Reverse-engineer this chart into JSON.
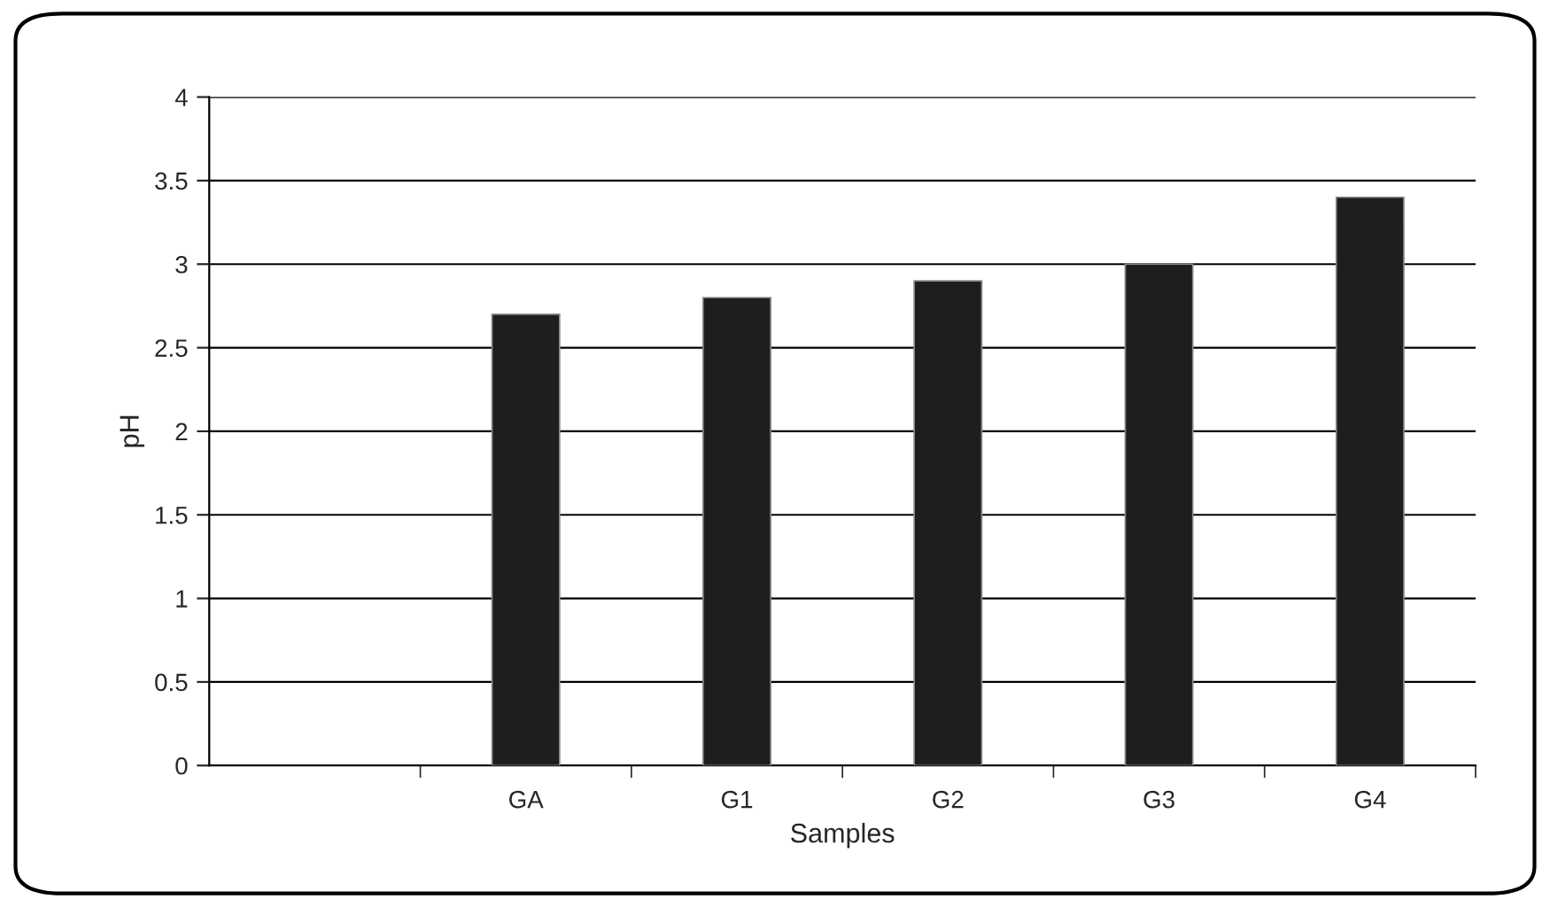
{
  "chart_data": {
    "type": "bar",
    "xlabel": "Samples",
    "ylabel": "pH",
    "categories": [
      null,
      "GA",
      "G1",
      "G2",
      "G3",
      "G4"
    ],
    "values": [
      null,
      2.7,
      2.8,
      2.9,
      3.0,
      3.4
    ],
    "color": "#1e1e1e",
    "ylim": [
      0,
      4
    ],
    "yticks": [
      0,
      0.5,
      1,
      1.5,
      2,
      2.5,
      3,
      3.5,
      4
    ],
    "grid": "y",
    "legend": false
  }
}
